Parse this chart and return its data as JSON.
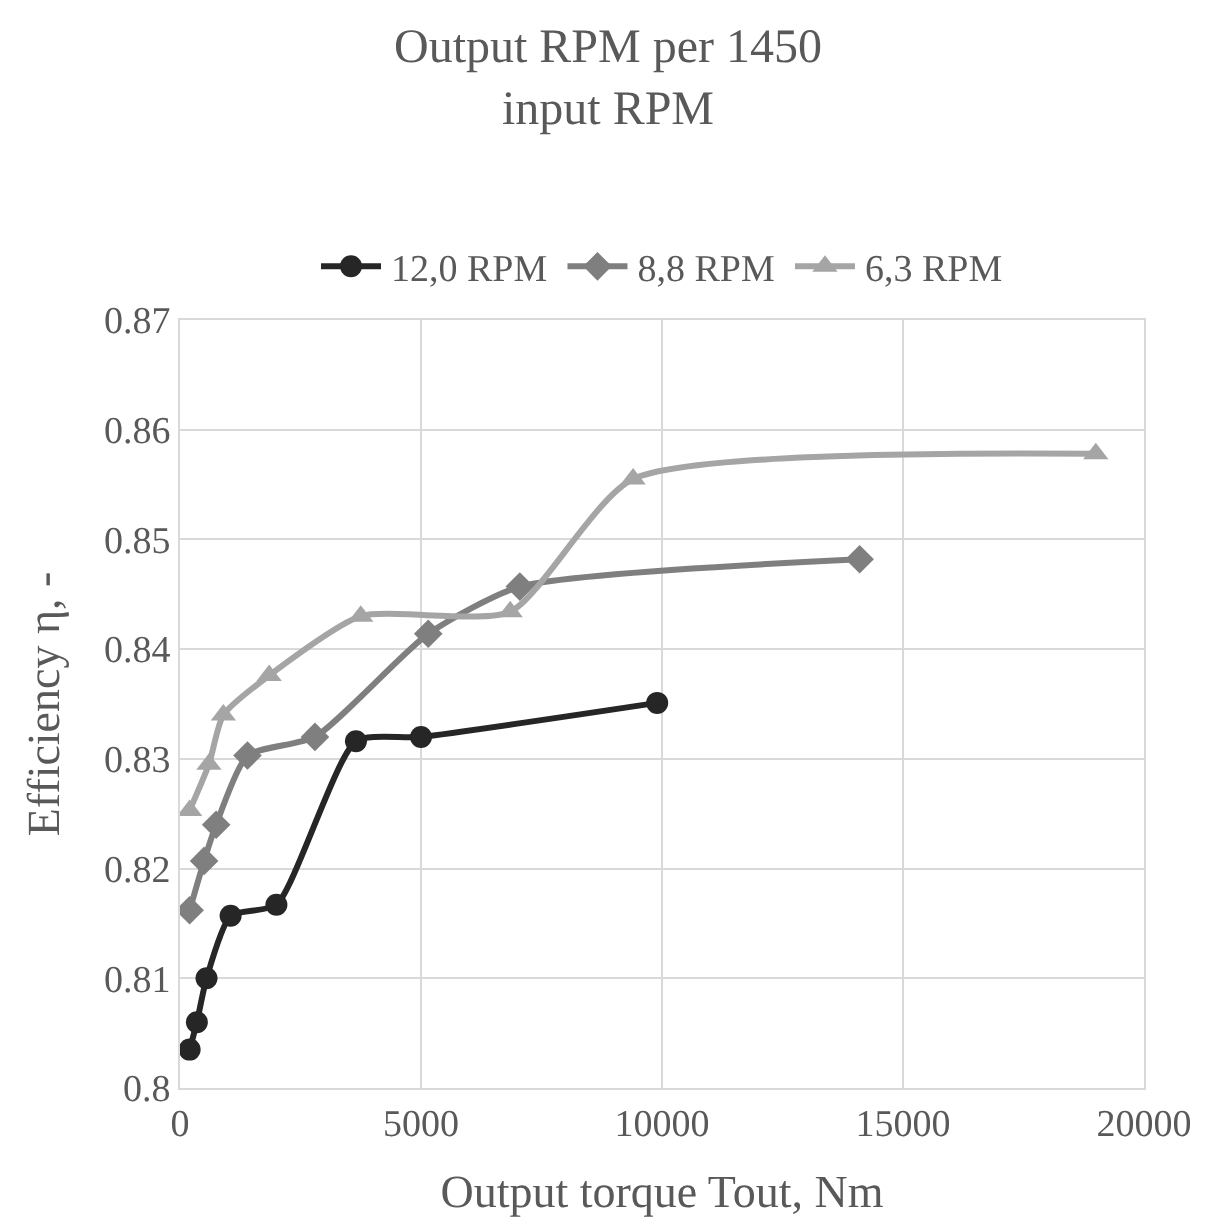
{
  "chart_data": {
    "type": "line",
    "title": "Output RPM per 1450 input RPM",
    "xlabel": "Output torque Tout, Nm",
    "ylabel": "Efficiency η, -",
    "xlim": [
      0,
      20000
    ],
    "xticks": [
      0,
      5000,
      10000,
      15000,
      20000
    ],
    "ylim": [
      0.8,
      0.87
    ],
    "yticks": [
      0.8,
      0.81,
      0.82,
      0.83,
      0.84,
      0.85,
      0.86,
      0.87
    ],
    "grid": true,
    "legend": "top",
    "line_style": "solid",
    "series": [
      {
        "name": "12,0 RPM",
        "color": "#262626",
        "marker": "circle",
        "x": [
          200,
          350,
          550,
          1050,
          2000,
          3650,
          5000,
          9900
        ],
        "values": [
          0.8035,
          0.806,
          0.81,
          0.8157,
          0.8167,
          0.8316,
          0.832,
          0.8351
        ]
      },
      {
        "name": "8,8 RPM",
        "color": "#7f7f7f",
        "marker": "diamond",
        "x": [
          200,
          500,
          750,
          1400,
          2800,
          5150,
          7050,
          14100
        ],
        "values": [
          0.8162,
          0.8207,
          0.824,
          0.8303,
          0.832,
          0.8414,
          0.8457,
          0.8482
        ]
      },
      {
        "name": "6,3 RPM",
        "color": "#a5a5a5",
        "marker": "triangle",
        "x": [
          200,
          600,
          900,
          1850,
          3750,
          6850,
          9400,
          19000
        ],
        "values": [
          0.8253,
          0.8295,
          0.834,
          0.8376,
          0.843,
          0.8434,
          0.8555,
          0.8578
        ]
      }
    ]
  }
}
